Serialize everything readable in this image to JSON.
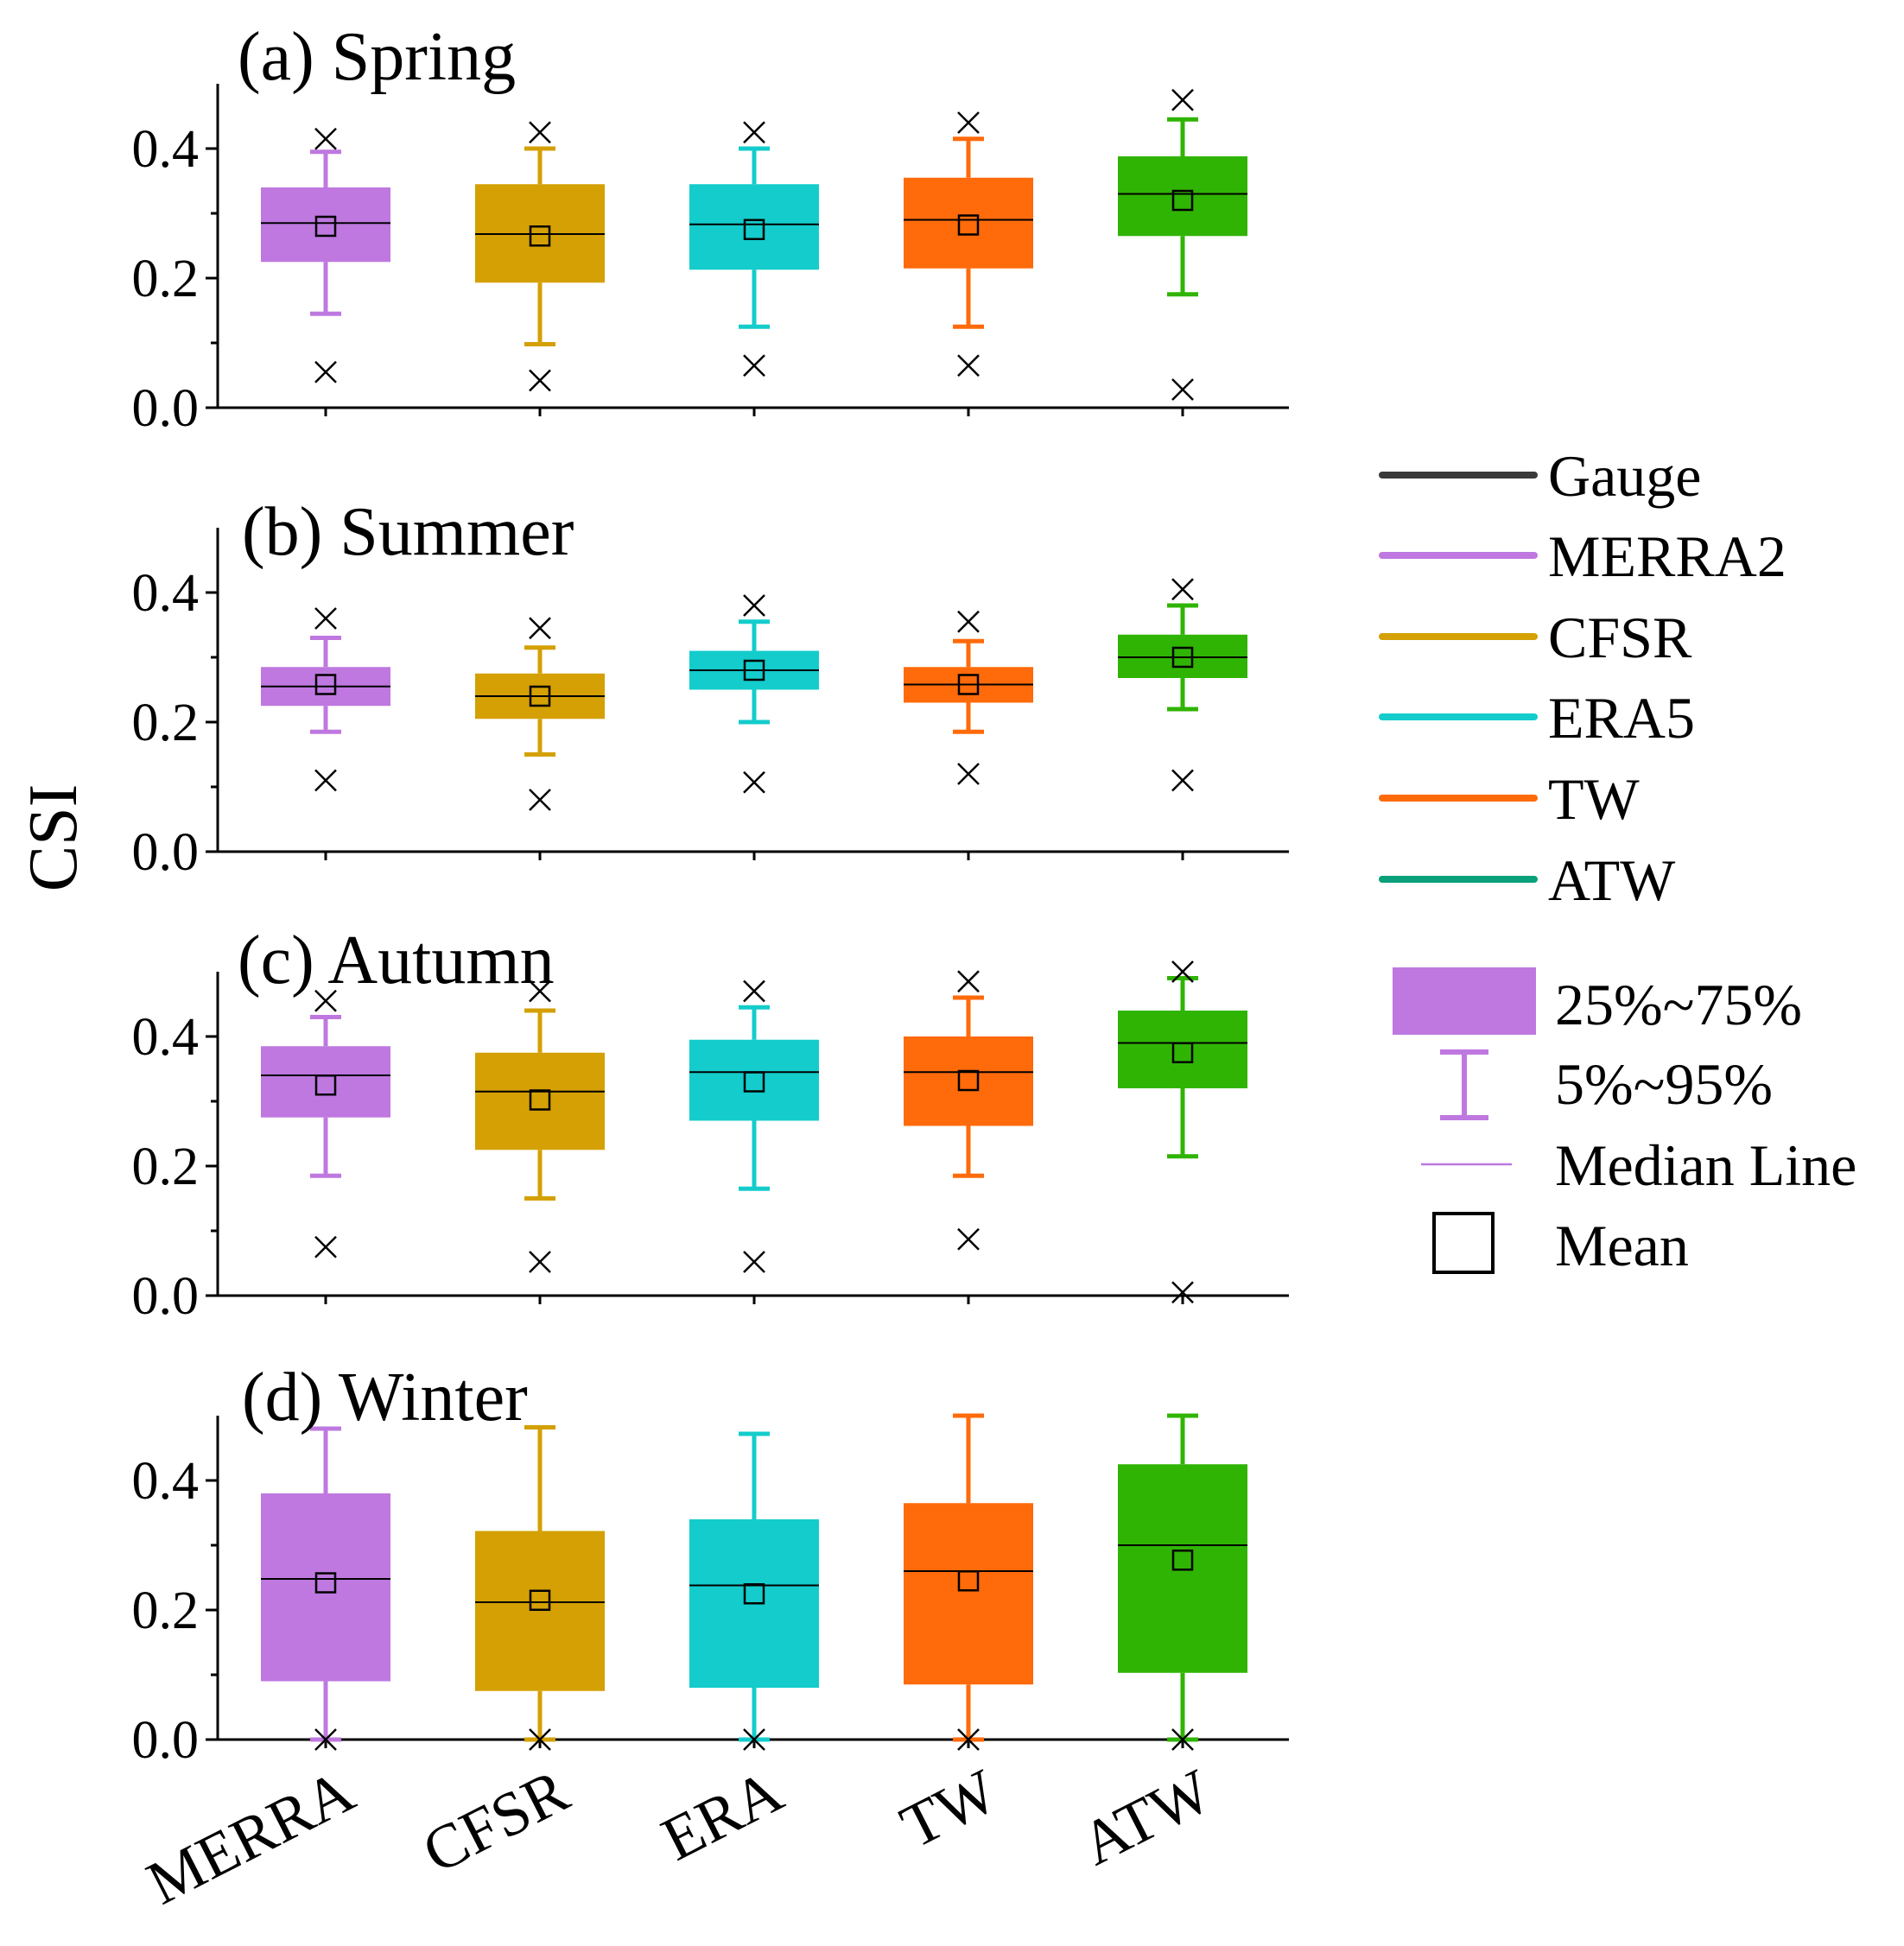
{
  "chart_data": {
    "type": "box",
    "ylabel": "CSI",
    "categories": [
      "MERRA",
      "CFSR",
      "ERA",
      "TW",
      "ATW"
    ],
    "colors": [
      "#be78e0",
      "#d4a004",
      "#14cccc",
      "#ff6a0a",
      "#30b404"
    ],
    "ylim": [
      0,
      0.5
    ],
    "yticks": [
      "0.0",
      "0.2",
      "0.4"
    ],
    "panels": [
      {
        "title": "(a) Spring",
        "boxes": [
          {
            "q1": 0.225,
            "median": 0.285,
            "q3": 0.34,
            "p5": 0.145,
            "p95": 0.395,
            "mean": 0.28,
            "min": 0.055,
            "max": 0.415
          },
          {
            "q1": 0.193,
            "median": 0.268,
            "q3": 0.345,
            "p5": 0.098,
            "p95": 0.4,
            "mean": 0.265,
            "min": 0.042,
            "max": 0.425
          },
          {
            "q1": 0.213,
            "median": 0.283,
            "q3": 0.345,
            "p5": 0.125,
            "p95": 0.4,
            "mean": 0.275,
            "min": 0.065,
            "max": 0.425
          },
          {
            "q1": 0.215,
            "median": 0.29,
            "q3": 0.355,
            "p5": 0.125,
            "p95": 0.415,
            "mean": 0.282,
            "min": 0.065,
            "max": 0.44
          },
          {
            "q1": 0.265,
            "median": 0.33,
            "q3": 0.388,
            "p5": 0.175,
            "p95": 0.445,
            "mean": 0.32,
            "min": 0.028,
            "max": 0.475
          }
        ]
      },
      {
        "title": "(b) Summer",
        "boxes": [
          {
            "q1": 0.225,
            "median": 0.255,
            "q3": 0.285,
            "p5": 0.185,
            "p95": 0.33,
            "mean": 0.258,
            "min": 0.11,
            "max": 0.36
          },
          {
            "q1": 0.205,
            "median": 0.24,
            "q3": 0.275,
            "p5": 0.15,
            "p95": 0.315,
            "mean": 0.24,
            "min": 0.08,
            "max": 0.345
          },
          {
            "q1": 0.25,
            "median": 0.28,
            "q3": 0.31,
            "p5": 0.2,
            "p95": 0.355,
            "mean": 0.28,
            "min": 0.107,
            "max": 0.38
          },
          {
            "q1": 0.23,
            "median": 0.258,
            "q3": 0.285,
            "p5": 0.185,
            "p95": 0.325,
            "mean": 0.258,
            "min": 0.12,
            "max": 0.355
          },
          {
            "q1": 0.268,
            "median": 0.3,
            "q3": 0.335,
            "p5": 0.22,
            "p95": 0.38,
            "mean": 0.3,
            "min": 0.11,
            "max": 0.405
          }
        ]
      },
      {
        "title": "(c) Autumn",
        "boxes": [
          {
            "q1": 0.275,
            "median": 0.34,
            "q3": 0.385,
            "p5": 0.185,
            "p95": 0.43,
            "mean": 0.325,
            "min": 0.075,
            "max": 0.455
          },
          {
            "q1": 0.225,
            "median": 0.315,
            "q3": 0.375,
            "p5": 0.15,
            "p95": 0.44,
            "mean": 0.302,
            "min": 0.052,
            "max": 0.47
          },
          {
            "q1": 0.27,
            "median": 0.345,
            "q3": 0.395,
            "p5": 0.165,
            "p95": 0.445,
            "mean": 0.33,
            "min": 0.052,
            "max": 0.47
          },
          {
            "q1": 0.262,
            "median": 0.345,
            "q3": 0.4,
            "p5": 0.185,
            "p95": 0.46,
            "mean": 0.332,
            "min": 0.087,
            "max": 0.485
          },
          {
            "q1": 0.32,
            "median": 0.39,
            "q3": 0.44,
            "p5": 0.215,
            "p95": 0.49,
            "mean": 0.375,
            "min": 0.005,
            "max": 0.5
          }
        ]
      },
      {
        "title": "(d) Winter",
        "boxes": [
          {
            "q1": 0.09,
            "median": 0.248,
            "q3": 0.38,
            "p5": 0.0,
            "p95": 0.48,
            "mean": 0.242,
            "min": 0.0,
            "max": null
          },
          {
            "q1": 0.075,
            "median": 0.212,
            "q3": 0.322,
            "p5": 0.0,
            "p95": 0.482,
            "mean": 0.215,
            "min": 0.0,
            "max": null
          },
          {
            "q1": 0.08,
            "median": 0.238,
            "q3": 0.34,
            "p5": 0.0,
            "p95": 0.472,
            "mean": 0.225,
            "min": 0.0,
            "max": null
          },
          {
            "q1": 0.085,
            "median": 0.26,
            "q3": 0.365,
            "p5": 0.0,
            "p95": 0.5,
            "mean": 0.245,
            "min": 0.0,
            "max": null
          },
          {
            "q1": 0.103,
            "median": 0.3,
            "q3": 0.425,
            "p5": 0.0,
            "p95": 0.5,
            "mean": 0.277,
            "min": 0.0,
            "max": null
          }
        ]
      }
    ],
    "legend": {
      "series": [
        {
          "label": "Gauge",
          "color": "#3a3a3a"
        },
        {
          "label": "MERRA2",
          "color": "#be78e0"
        },
        {
          "label": "CFSR",
          "color": "#d4a004"
        },
        {
          "label": "ERA5",
          "color": "#14cccc"
        },
        {
          "label": "TW",
          "color": "#ff6a0a"
        },
        {
          "label": "ATW",
          "color": "#0aa07a"
        }
      ],
      "box_label": "25%~75%",
      "whisker_label": "5%~95%",
      "median_label": "Median Line",
      "mean_label": "Mean"
    }
  }
}
